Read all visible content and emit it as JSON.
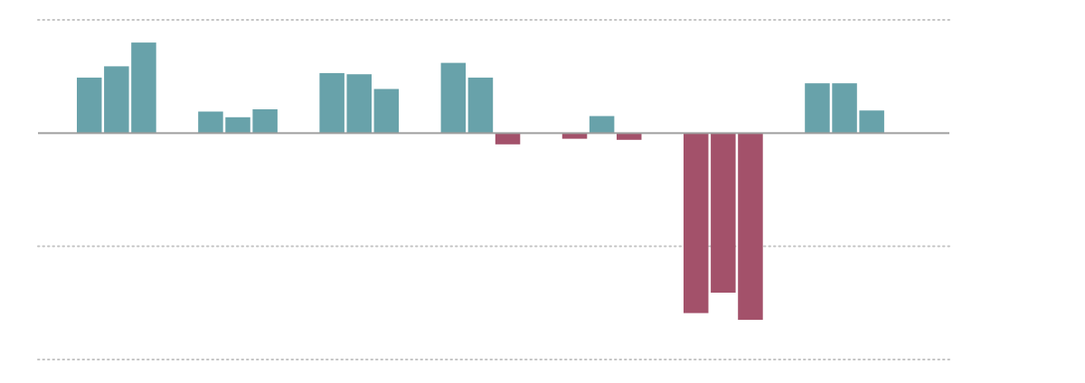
{
  "colors": {
    "positive": "#68a2aa",
    "negative": "#a3516a",
    "baseline": "#9e9e9e",
    "gridline": "#c4c4c4"
  },
  "chart_data": {
    "type": "bar",
    "grid": true,
    "legend": "none",
    "ylim": [
      -2,
      1
    ],
    "gridlines": [
      1,
      -1,
      -2
    ],
    "baseline": 0,
    "groups": [
      {
        "values": [
          0.49,
          0.59,
          0.8
        ]
      },
      {
        "values": [
          0.19,
          0.14,
          0.21
        ]
      },
      {
        "values": [
          0.53,
          0.52,
          0.39
        ]
      },
      {
        "values": [
          0.62,
          0.49,
          -0.1
        ]
      },
      {
        "values": [
          -0.05,
          0.15,
          -0.06
        ]
      },
      {
        "values": [
          -1.59,
          -1.41,
          -1.65
        ]
      },
      {
        "values": [
          0.44,
          0.44,
          0.2
        ]
      }
    ]
  }
}
